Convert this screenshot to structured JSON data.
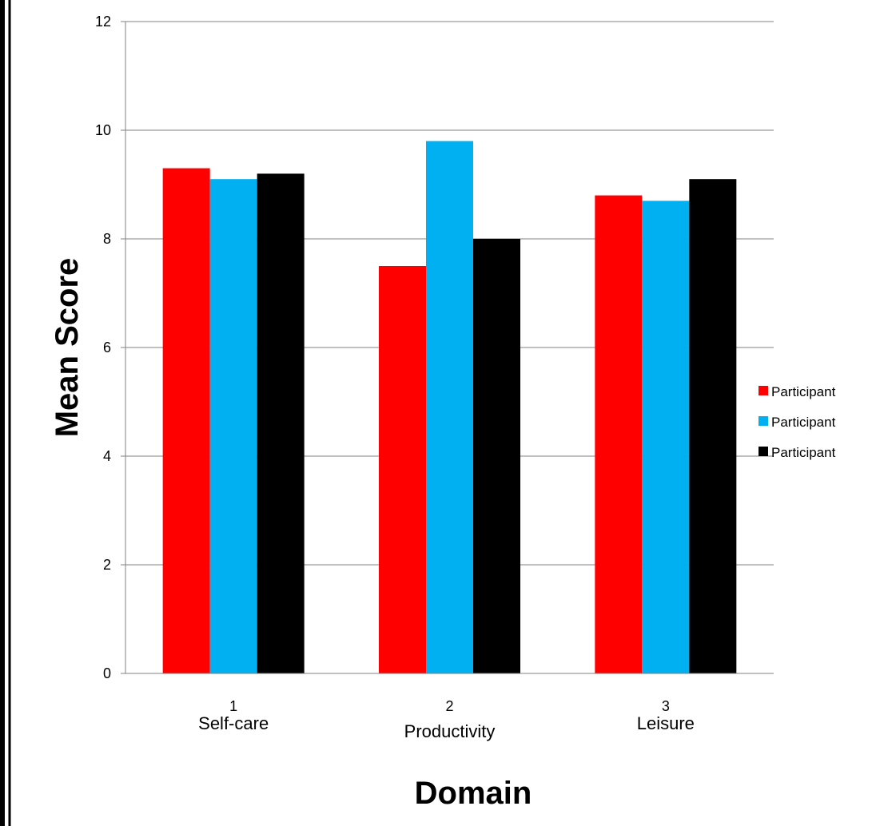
{
  "chart_data": {
    "type": "bar",
    "categories": [
      "1",
      "2",
      "3"
    ],
    "category_names": [
      "Self-care",
      "Productivity",
      "Leisure"
    ],
    "series": [
      {
        "name": "Participant",
        "color": "#ff0000",
        "values": [
          9.3,
          7.5,
          8.8
        ]
      },
      {
        "name": "Participant",
        "color": "#00b0f0",
        "values": [
          9.1,
          9.8,
          8.7
        ]
      },
      {
        "name": "Participant",
        "color": "#000000",
        "values": [
          9.2,
          8.0,
          9.1
        ]
      }
    ],
    "xlabel": "Domain",
    "ylabel": "Mean Score",
    "ylim": [
      0,
      12
    ],
    "yticks": [
      "0",
      "2",
      "4",
      "6",
      "8",
      "10",
      "12"
    ],
    "grid": true,
    "legend_position": "right"
  }
}
